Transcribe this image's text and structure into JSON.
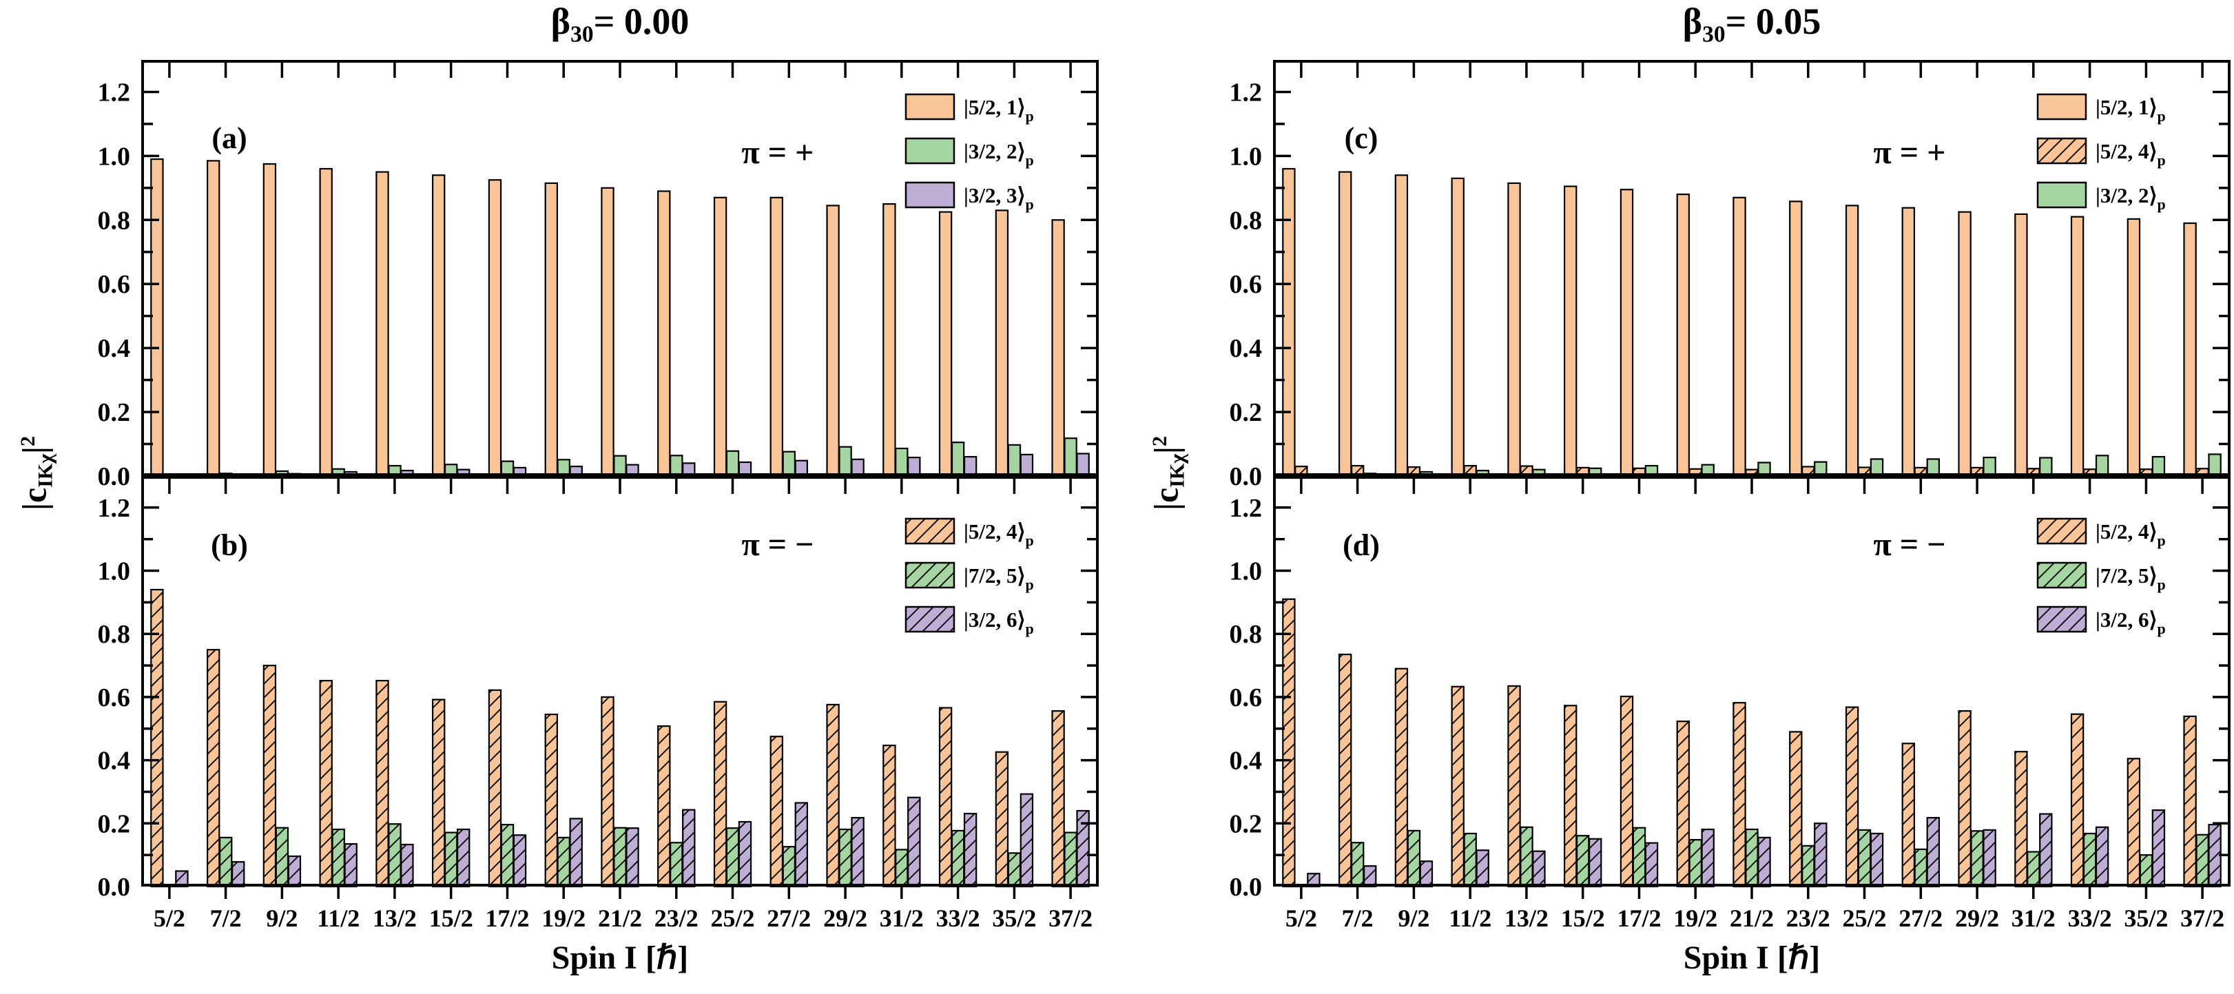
{
  "figure_titles": {
    "left": {
      "symbol": "β",
      "sub": "30",
      "rest": "= 0.00"
    },
    "right": {
      "symbol": "β",
      "sub": "30",
      "rest": "= 0.05"
    }
  },
  "y_axis_title": {
    "open": "|c",
    "sub": "IKχ",
    "bar": "|",
    "sup": "2"
  },
  "x_axis_title": "Spin I [ℏ]",
  "colors": {
    "orange": "#F9C498",
    "green": "#A5D6A1",
    "purple": "#BEAED5",
    "axis": "#000000",
    "hatch_line": "#111111"
  },
  "chart_data": [
    {
      "id": "a",
      "panel_label": "(a)",
      "parity_label": "π = +",
      "column": 0,
      "row": "top",
      "type": "bar",
      "ylim": [
        0,
        1.3
      ],
      "ytick_labels": [
        "0.0",
        "0.2",
        "0.4",
        "0.6",
        "0.8",
        "1.0",
        "1.2"
      ],
      "legend_position": "top-right",
      "grid": false,
      "categories": [
        "5/2",
        "7/2",
        "9/2",
        "11/2",
        "13/2",
        "15/2",
        "17/2",
        "19/2",
        "21/2",
        "23/2",
        "25/2",
        "27/2",
        "29/2",
        "31/2",
        "33/2",
        "35/2",
        "37/2"
      ],
      "series": [
        {
          "name": "|5/2, 1⟩",
          "subscript": "p",
          "color_key": "orange",
          "hatch": false,
          "values": [
            0.99,
            0.985,
            0.975,
            0.96,
            0.95,
            0.94,
            0.925,
            0.915,
            0.9,
            0.89,
            0.87,
            0.87,
            0.845,
            0.85,
            0.825,
            0.83,
            0.8
          ]
        },
        {
          "name": "|3/2, 2⟩",
          "subscript": "p",
          "color_key": "green",
          "hatch": false,
          "values": [
            0.003,
            0.008,
            0.015,
            0.022,
            0.032,
            0.036,
            0.046,
            0.051,
            0.063,
            0.064,
            0.078,
            0.076,
            0.091,
            0.086,
            0.105,
            0.097,
            0.118
          ]
        },
        {
          "name": "|3/2, 3⟩",
          "subscript": "p",
          "color_key": "purple",
          "hatch": false,
          "values": [
            0.002,
            0.004,
            0.007,
            0.013,
            0.017,
            0.02,
            0.026,
            0.03,
            0.035,
            0.04,
            0.043,
            0.048,
            0.052,
            0.058,
            0.06,
            0.067,
            0.07
          ]
        }
      ]
    },
    {
      "id": "b",
      "panel_label": "(b)",
      "parity_label": "π = −",
      "column": 0,
      "row": "bottom",
      "type": "bar",
      "ylim": [
        0,
        1.3
      ],
      "ytick_labels": [
        "0.0",
        "0.2",
        "0.4",
        "0.6",
        "0.8",
        "1.0",
        "1.2"
      ],
      "legend_position": "top-right",
      "grid": false,
      "categories": [
        "5/2",
        "7/2",
        "9/2",
        "11/2",
        "13/2",
        "15/2",
        "17/2",
        "19/2",
        "21/2",
        "23/2",
        "25/2",
        "27/2",
        "29/2",
        "31/2",
        "33/2",
        "35/2",
        "37/2"
      ],
      "series": [
        {
          "name": "|5/2, 4⟩",
          "subscript": "p",
          "color_key": "orange",
          "hatch": true,
          "values": [
            0.94,
            0.75,
            0.7,
            0.652,
            0.652,
            0.592,
            0.622,
            0.545,
            0.6,
            0.508,
            0.585,
            0.475,
            0.576,
            0.447,
            0.566,
            0.426,
            0.556
          ]
        },
        {
          "name": "|7/2, 5⟩",
          "subscript": "p",
          "color_key": "green",
          "hatch": true,
          "values": [
            0.004,
            0.155,
            0.186,
            0.181,
            0.198,
            0.171,
            0.196,
            0.155,
            0.186,
            0.139,
            0.185,
            0.126,
            0.181,
            0.117,
            0.177,
            0.106,
            0.171
          ]
        },
        {
          "name": "|3/2, 6⟩",
          "subscript": "p",
          "color_key": "purple",
          "hatch": true,
          "values": [
            0.049,
            0.078,
            0.096,
            0.135,
            0.133,
            0.181,
            0.163,
            0.215,
            0.185,
            0.243,
            0.205,
            0.265,
            0.218,
            0.282,
            0.231,
            0.293,
            0.24
          ]
        }
      ]
    },
    {
      "id": "c",
      "panel_label": "(c)",
      "parity_label": "π = +",
      "column": 1,
      "row": "top",
      "type": "bar",
      "ylim": [
        0,
        1.3
      ],
      "ytick_labels": [
        "0.0",
        "0.2",
        "0.4",
        "0.6",
        "0.8",
        "1.0",
        "1.2"
      ],
      "legend_position": "top-right",
      "grid": false,
      "categories": [
        "5/2",
        "7/2",
        "9/2",
        "11/2",
        "13/2",
        "15/2",
        "17/2",
        "19/2",
        "21/2",
        "23/2",
        "25/2",
        "27/2",
        "29/2",
        "31/2",
        "33/2",
        "35/2",
        "37/2"
      ],
      "series": [
        {
          "name": "|5/2, 1⟩",
          "subscript": "p",
          "color_key": "orange",
          "hatch": false,
          "values": [
            0.96,
            0.95,
            0.94,
            0.93,
            0.915,
            0.905,
            0.895,
            0.88,
            0.87,
            0.858,
            0.845,
            0.838,
            0.825,
            0.818,
            0.81,
            0.803,
            0.79
          ]
        },
        {
          "name": "|5/2, 4⟩",
          "subscript": "p",
          "color_key": "orange",
          "hatch": true,
          "values": [
            0.03,
            0.032,
            0.028,
            0.032,
            0.031,
            0.026,
            0.024,
            0.022,
            0.02,
            0.029,
            0.027,
            0.026,
            0.026,
            0.023,
            0.021,
            0.021,
            0.023
          ]
        },
        {
          "name": "|3/2, 2⟩",
          "subscript": "p",
          "color_key": "green",
          "hatch": false,
          "values": [
            0.003,
            0.008,
            0.013,
            0.017,
            0.02,
            0.024,
            0.032,
            0.035,
            0.042,
            0.044,
            0.053,
            0.053,
            0.058,
            0.057,
            0.064,
            0.06,
            0.068
          ]
        }
      ]
    },
    {
      "id": "d",
      "panel_label": "(d)",
      "parity_label": "π = −",
      "column": 1,
      "row": "bottom",
      "type": "bar",
      "ylim": [
        0,
        1.3
      ],
      "ytick_labels": [
        "0.0",
        "0.2",
        "0.4",
        "0.6",
        "0.8",
        "1.0",
        "1.2"
      ],
      "legend_position": "top-right",
      "grid": false,
      "categories": [
        "5/2",
        "7/2",
        "9/2",
        "11/2",
        "13/2",
        "15/2",
        "17/2",
        "19/2",
        "21/2",
        "23/2",
        "25/2",
        "27/2",
        "29/2",
        "31/2",
        "33/2",
        "35/2",
        "37/2"
      ],
      "series": [
        {
          "name": "|5/2, 4⟩",
          "subscript": "p",
          "color_key": "orange",
          "hatch": true,
          "values": [
            0.91,
            0.735,
            0.69,
            0.633,
            0.635,
            0.573,
            0.602,
            0.523,
            0.582,
            0.49,
            0.568,
            0.453,
            0.556,
            0.427,
            0.546,
            0.405,
            0.539
          ]
        },
        {
          "name": "|7/2, 5⟩",
          "subscript": "p",
          "color_key": "green",
          "hatch": true,
          "values": [
            0.003,
            0.139,
            0.177,
            0.168,
            0.188,
            0.161,
            0.186,
            0.148,
            0.181,
            0.129,
            0.179,
            0.118,
            0.176,
            0.11,
            0.168,
            0.1,
            0.164
          ]
        },
        {
          "name": "|3/2, 6⟩",
          "subscript": "p",
          "color_key": "purple",
          "hatch": true,
          "values": [
            0.041,
            0.065,
            0.08,
            0.115,
            0.112,
            0.151,
            0.138,
            0.181,
            0.155,
            0.2,
            0.168,
            0.218,
            0.179,
            0.23,
            0.188,
            0.242,
            0.196
          ]
        }
      ]
    }
  ]
}
